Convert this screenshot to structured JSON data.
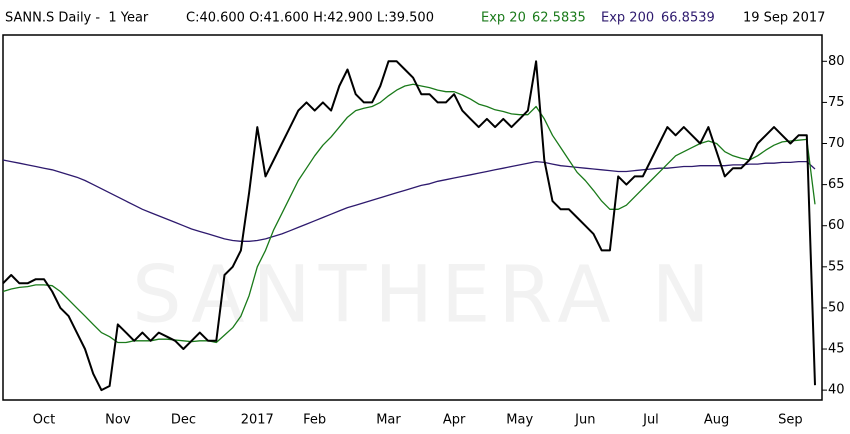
{
  "chart_data": {
    "type": "line",
    "title": "SANN.S Daily -  1 Year",
    "quote": "C:40.600 O:41.600 H:42.900 L:39.500",
    "date": "19 Sep 2017",
    "watermark": "SANTHERA N",
    "categories": [
      null,
      null,
      null,
      null,
      null,
      "Oct",
      null,
      null,
      null,
      null,
      null,
      null,
      null,
      null,
      "Nov",
      null,
      null,
      null,
      null,
      null,
      null,
      null,
      "Dec",
      null,
      null,
      null,
      null,
      null,
      null,
      null,
      null,
      "2017",
      null,
      null,
      null,
      null,
      null,
      null,
      "Feb",
      null,
      null,
      null,
      null,
      null,
      null,
      null,
      null,
      "Mar",
      null,
      null,
      null,
      null,
      null,
      null,
      null,
      "Apr",
      null,
      null,
      null,
      null,
      null,
      null,
      null,
      "May",
      null,
      null,
      null,
      null,
      null,
      null,
      null,
      "Jun",
      null,
      null,
      null,
      null,
      null,
      null,
      null,
      "Jul",
      null,
      null,
      null,
      null,
      null,
      null,
      null,
      "Aug",
      null,
      null,
      null,
      null,
      null,
      null,
      null,
      null,
      "Sep",
      null,
      null,
      null
    ],
    "series": [
      {
        "color": "#000000",
        "width": 2,
        "values": [
          53,
          54,
          53,
          53,
          53.5,
          53.5,
          52,
          50,
          49,
          47,
          45,
          42,
          40,
          40.5,
          48,
          47,
          46,
          47,
          46,
          47,
          46.5,
          46,
          45,
          46,
          47,
          46,
          46,
          54,
          55,
          57,
          64,
          72,
          66,
          68,
          70,
          72,
          74,
          75,
          74,
          75,
          74,
          77,
          79,
          76,
          75,
          75,
          77,
          80,
          80,
          79,
          78,
          76,
          76,
          75,
          75,
          76,
          74,
          73,
          72,
          73,
          72,
          73,
          72,
          73,
          74,
          80,
          68,
          63,
          62,
          62,
          61,
          60,
          59,
          57,
          57,
          66,
          65,
          66,
          66,
          68,
          70,
          72,
          71,
          72,
          71,
          70,
          72,
          69,
          66,
          67,
          67,
          68,
          70,
          71,
          72,
          71,
          70,
          71,
          71,
          40.6
        ]
      },
      {
        "name": "Exp 20",
        "last_value": 62.5835,
        "color": "#1a7a1a",
        "width": 1.3,
        "values": [
          52,
          52.3,
          52.5,
          52.6,
          52.8,
          52.8,
          52.7,
          52,
          51,
          50,
          49,
          48,
          47,
          46.5,
          45.8,
          45.8,
          46,
          46,
          46,
          46.2,
          46.2,
          46.1,
          46,
          45.9,
          46,
          46,
          45.8,
          46.7,
          47.6,
          49,
          51.5,
          55,
          57,
          59.5,
          61.5,
          63.5,
          65.5,
          67,
          68.5,
          69.8,
          70.8,
          72,
          73.2,
          74,
          74.3,
          74.5,
          75,
          75.8,
          76.5,
          77,
          77.2,
          77,
          76.8,
          76.5,
          76.3,
          76.3,
          75.9,
          75.4,
          74.8,
          74.5,
          74.1,
          73.9,
          73.6,
          73.5,
          73.5,
          74.5,
          73,
          71,
          69.5,
          68,
          66.5,
          65.5,
          64.3,
          63,
          62,
          62,
          62.5,
          63.5,
          64.5,
          65.5,
          66.5,
          67.5,
          68.5,
          69,
          69.5,
          70,
          70.3,
          70,
          69,
          68.5,
          68.2,
          68,
          68.5,
          69.2,
          69.8,
          70.2,
          70.3,
          70.4,
          70.5,
          62.6
        ]
      },
      {
        "name": "Exp 200",
        "last_value": 66.8539,
        "color": "#2e1a6e",
        "width": 1.3,
        "values": [
          68,
          67.8,
          67.6,
          67.4,
          67.2,
          67,
          66.8,
          66.5,
          66.2,
          65.9,
          65.5,
          65,
          64.5,
          64,
          63.5,
          63,
          62.5,
          62,
          61.6,
          61.2,
          60.8,
          60.4,
          60,
          59.6,
          59.3,
          59,
          58.7,
          58.4,
          58.2,
          58.1,
          58.1,
          58.2,
          58.4,
          58.7,
          59,
          59.4,
          59.8,
          60.2,
          60.6,
          61,
          61.4,
          61.8,
          62.2,
          62.5,
          62.8,
          63.1,
          63.4,
          63.7,
          64,
          64.3,
          64.6,
          64.9,
          65.1,
          65.4,
          65.6,
          65.8,
          66,
          66.2,
          66.4,
          66.6,
          66.8,
          67,
          67.2,
          67.4,
          67.6,
          67.8,
          67.7,
          67.5,
          67.3,
          67.2,
          67.1,
          67,
          66.9,
          66.8,
          66.7,
          66.6,
          66.6,
          66.7,
          66.8,
          66.9,
          67,
          67,
          67.1,
          67.2,
          67.2,
          67.3,
          67.3,
          67.3,
          67.3,
          67.4,
          67.4,
          67.5,
          67.5,
          67.6,
          67.6,
          67.7,
          67.7,
          67.8,
          67.8,
          66.9
        ]
      }
    ],
    "ylim": [
      38.8,
      83.2
    ],
    "yticks": [
      40,
      45,
      50,
      55,
      60,
      65,
      70,
      75,
      80
    ],
    "y_axis_side": "right",
    "grid": false
  }
}
